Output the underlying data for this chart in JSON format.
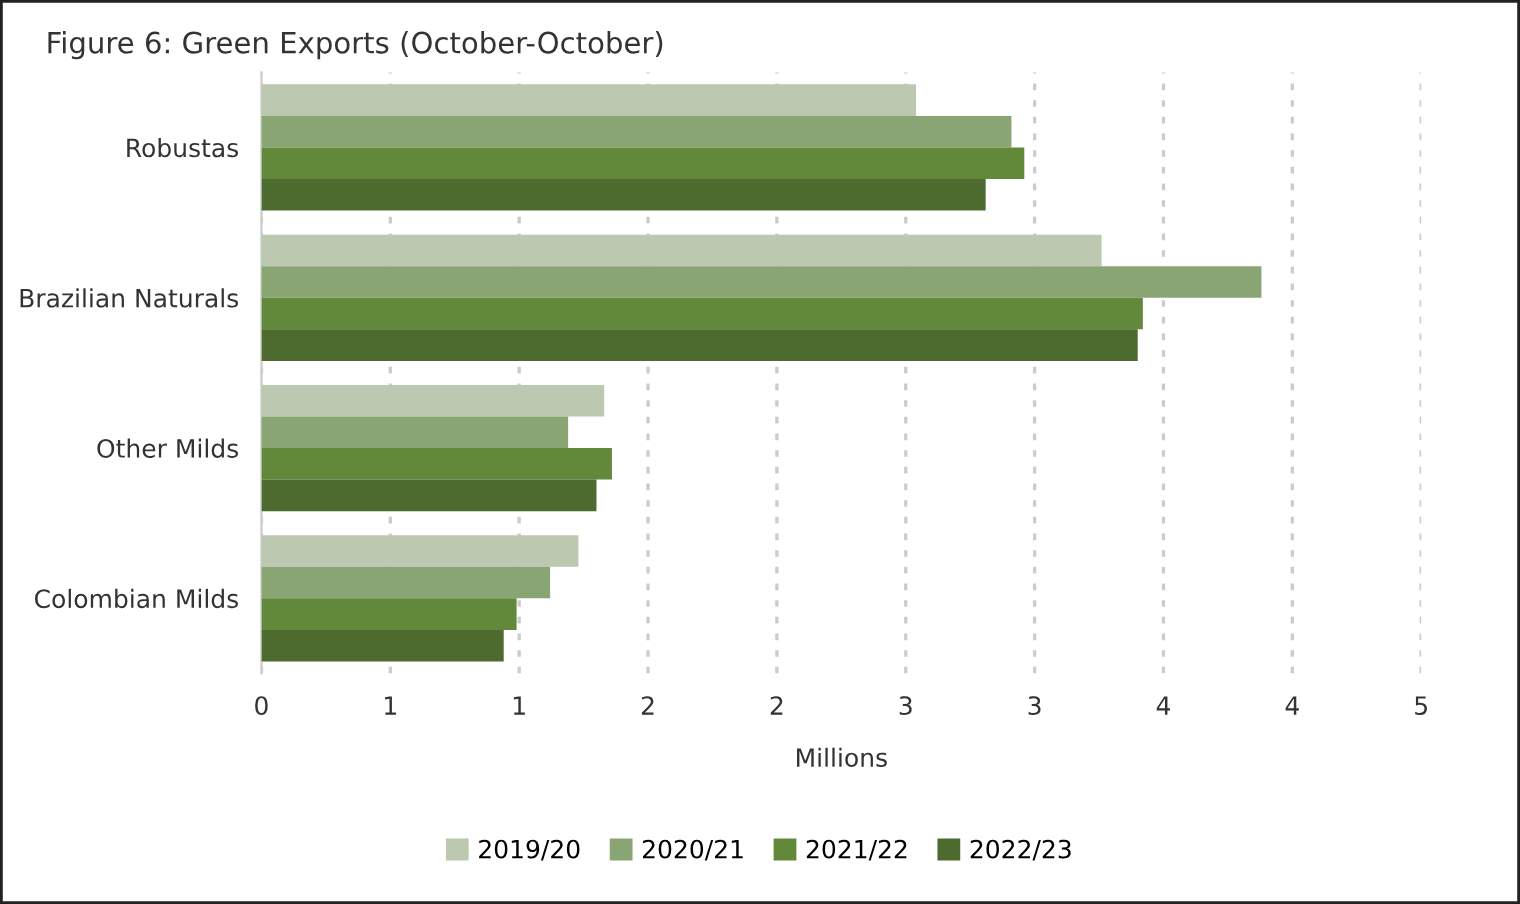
{
  "chart_data": {
    "type": "bar",
    "orientation": "horizontal",
    "title": "Figure 6: Green Exports (October-October)",
    "xlabel": "Millions",
    "categories": [
      "Robustas",
      "Brazilian Naturals",
      "Other Milds",
      "Colombian Milds"
    ],
    "series": [
      {
        "name": "2019/20",
        "color": "#bcc8b0",
        "values": [
          2.54,
          3.26,
          1.33,
          1.23
        ]
      },
      {
        "name": "2020/21",
        "color": "#8aa574",
        "values": [
          2.91,
          3.88,
          1.19,
          1.12
        ]
      },
      {
        "name": "2021/22",
        "color": "#62883a",
        "values": [
          2.96,
          3.42,
          1.36,
          0.99
        ]
      },
      {
        "name": "2022/23",
        "color": "#4d6b2e",
        "values": [
          2.81,
          3.4,
          1.3,
          0.94
        ]
      }
    ],
    "xlim": [
      0,
      4.5
    ],
    "xticks": [
      0,
      {
        "value": 0.5,
        "label": "1"
      },
      1,
      {
        "value": 1.5,
        "label": "2"
      },
      2,
      {
        "value": 2.5,
        "label": "3"
      },
      3,
      {
        "value": 3.5,
        "label": "4"
      },
      4,
      {
        "value": 4.5,
        "label": "5"
      }
    ],
    "grid": "x",
    "legend": "bottom"
  }
}
